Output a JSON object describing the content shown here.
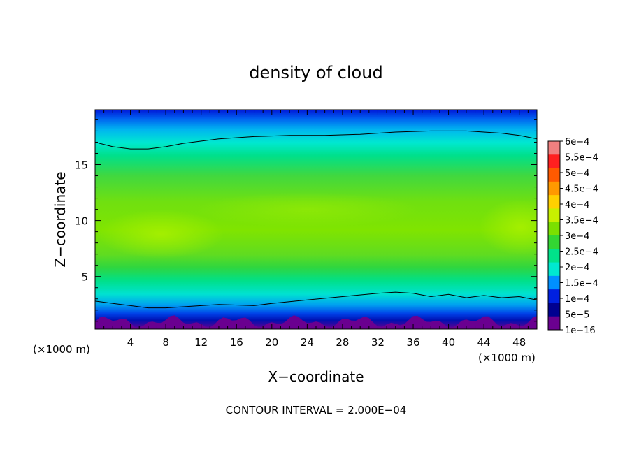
{
  "chart_data": {
    "type": "heatmap",
    "title": "density of cloud",
    "xlabel": "X−coordinate",
    "ylabel": "Z−coordinate",
    "x_unit": "(×1000 m)",
    "x_unit_right": "(×1000 m)",
    "footer": "CONTOUR INTERVAL = 2.000E−04",
    "xlim": [
      0,
      50
    ],
    "ylim": [
      0.3,
      19.9
    ],
    "x_ticks": [
      4,
      8,
      12,
      16,
      20,
      24,
      28,
      32,
      36,
      40,
      44,
      48
    ],
    "y_ticks": [
      5,
      10,
      15
    ],
    "colorbar": {
      "labels": [
        "6e−4",
        "5.5e−4",
        "5e−4",
        "4.5e−4",
        "4e−4",
        "3.5e−4",
        "3e−4",
        "2.5e−4",
        "2e−4",
        "1.5e−4",
        "1e−4",
        "5e−5",
        "1e−16"
      ],
      "colors": [
        "#f08080",
        "#ff2020",
        "#ff5a00",
        "#ff9900",
        "#ffd000",
        "#c8f000",
        "#7be000",
        "#33d633",
        "#00e28a",
        "#00e8d0",
        "#0090ff",
        "#0020e0",
        "#000090",
        "#6a0090"
      ]
    },
    "contour_lines": [
      {
        "level": "1e−4",
        "x": [
          0,
          2,
          4,
          6,
          8,
          10,
          14,
          18,
          22,
          26,
          30,
          34,
          38,
          42,
          46,
          48,
          50
        ],
        "z": [
          17.0,
          16.6,
          16.4,
          16.4,
          16.6,
          16.9,
          17.3,
          17.5,
          17.6,
          17.6,
          17.7,
          17.9,
          18.0,
          18.0,
          17.8,
          17.6,
          17.3
        ]
      },
      {
        "level": "1e−4",
        "x": [
          0,
          2,
          4,
          6,
          8,
          10,
          14,
          18,
          20,
          24,
          28,
          32,
          34,
          36,
          38,
          40,
          42,
          44,
          46,
          48,
          50
        ],
        "z": [
          2.8,
          2.6,
          2.4,
          2.2,
          2.2,
          2.3,
          2.5,
          2.4,
          2.6,
          2.9,
          3.2,
          3.5,
          3.6,
          3.5,
          3.2,
          3.4,
          3.1,
          3.3,
          3.1,
          3.2,
          2.9
        ]
      }
    ]
  }
}
